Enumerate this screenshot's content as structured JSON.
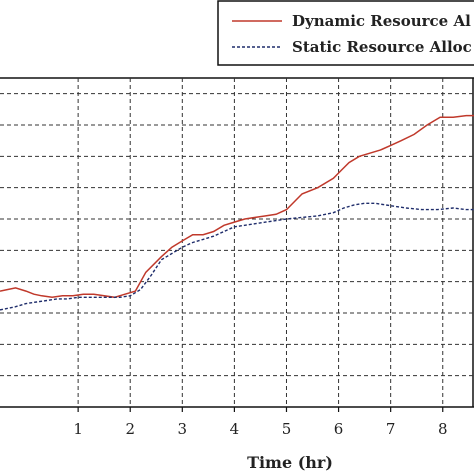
{
  "chart_data": {
    "type": "line",
    "title": "",
    "xlabel": "Time (hr)",
    "ylabel": "",
    "xlim": [
      -0.5,
      8.6
    ],
    "ylim": [
      0,
      10.5
    ],
    "xticks": [
      1,
      2,
      3,
      4,
      5,
      6,
      7,
      8
    ],
    "xtick_labels": [
      "1",
      "2",
      "3",
      "4",
      "5",
      "6",
      "7",
      "8"
    ],
    "y_gridlines": [
      1,
      2,
      3,
      4,
      5,
      6,
      7,
      8,
      9,
      10
    ],
    "grid": "dashed",
    "legend_position": "top-right",
    "series": [
      {
        "name": "Dynamic Resource Al",
        "color": "#c0392b",
        "style": "solid",
        "x": [
          -0.5,
          -0.35,
          -0.2,
          0.0,
          0.15,
          0.3,
          0.5,
          0.7,
          0.9,
          1.1,
          1.3,
          1.5,
          1.7,
          1.9,
          2.1,
          2.3,
          2.6,
          2.8,
          3.0,
          3.2,
          3.4,
          3.6,
          3.8,
          4.0,
          4.2,
          4.4,
          4.6,
          4.8,
          5.0,
          5.3,
          5.6,
          5.9,
          6.05,
          6.2,
          6.4,
          6.6,
          6.8,
          7.0,
          7.2,
          7.45,
          7.7,
          7.95,
          8.2,
          8.45,
          8.6
        ],
        "y": [
          3.7,
          3.75,
          3.8,
          3.7,
          3.6,
          3.55,
          3.5,
          3.55,
          3.55,
          3.6,
          3.6,
          3.55,
          3.5,
          3.6,
          3.7,
          4.3,
          4.8,
          5.1,
          5.3,
          5.5,
          5.5,
          5.6,
          5.8,
          5.9,
          6.0,
          6.05,
          6.1,
          6.15,
          6.3,
          6.8,
          7.0,
          7.3,
          7.55,
          7.8,
          8.0,
          8.1,
          8.2,
          8.35,
          8.5,
          8.7,
          9.0,
          9.25,
          9.25,
          9.3,
          9.3
        ]
      },
      {
        "name": "Static Resource Alloc",
        "color": "#1f2d6b",
        "style": "dashed",
        "x": [
          -0.5,
          -0.35,
          -0.2,
          0.0,
          0.2,
          0.4,
          0.6,
          0.8,
          1.0,
          1.2,
          1.4,
          1.6,
          1.8,
          2.0,
          2.2,
          2.4,
          2.6,
          2.8,
          3.0,
          3.2,
          3.4,
          3.6,
          3.8,
          4.0,
          4.2,
          4.4,
          4.6,
          4.8,
          5.0,
          5.3,
          5.6,
          5.9,
          6.1,
          6.3,
          6.5,
          6.7,
          6.9,
          7.1,
          7.3,
          7.6,
          7.9,
          8.2,
          8.45,
          8.6
        ],
        "y": [
          3.1,
          3.15,
          3.2,
          3.3,
          3.35,
          3.4,
          3.45,
          3.45,
          3.5,
          3.5,
          3.5,
          3.5,
          3.5,
          3.55,
          3.75,
          4.2,
          4.7,
          4.9,
          5.1,
          5.25,
          5.35,
          5.45,
          5.6,
          5.75,
          5.8,
          5.85,
          5.9,
          5.95,
          6.0,
          6.05,
          6.1,
          6.2,
          6.35,
          6.45,
          6.5,
          6.5,
          6.45,
          6.4,
          6.35,
          6.3,
          6.3,
          6.35,
          6.3,
          6.3
        ]
      }
    ]
  }
}
